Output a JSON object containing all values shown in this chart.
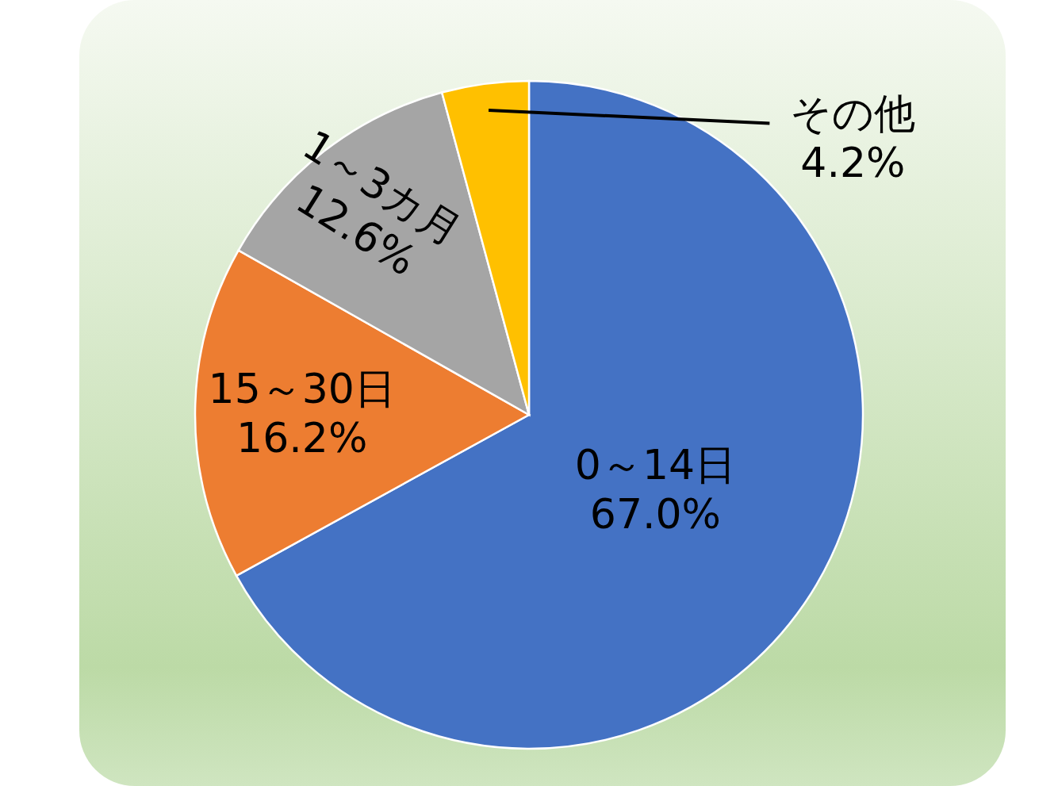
{
  "chart_data": {
    "type": "pie",
    "categories": [
      "0～14日",
      "15～30日",
      "1～3カ月",
      "その他"
    ],
    "values": [
      67.0,
      16.2,
      12.6,
      4.2
    ],
    "value_labels": [
      "67.0%",
      "16.2%",
      "12.6%",
      "4.2%"
    ],
    "colors": [
      "#4472c4",
      "#ed7d31",
      "#a5a5a5",
      "#ffc000"
    ]
  }
}
